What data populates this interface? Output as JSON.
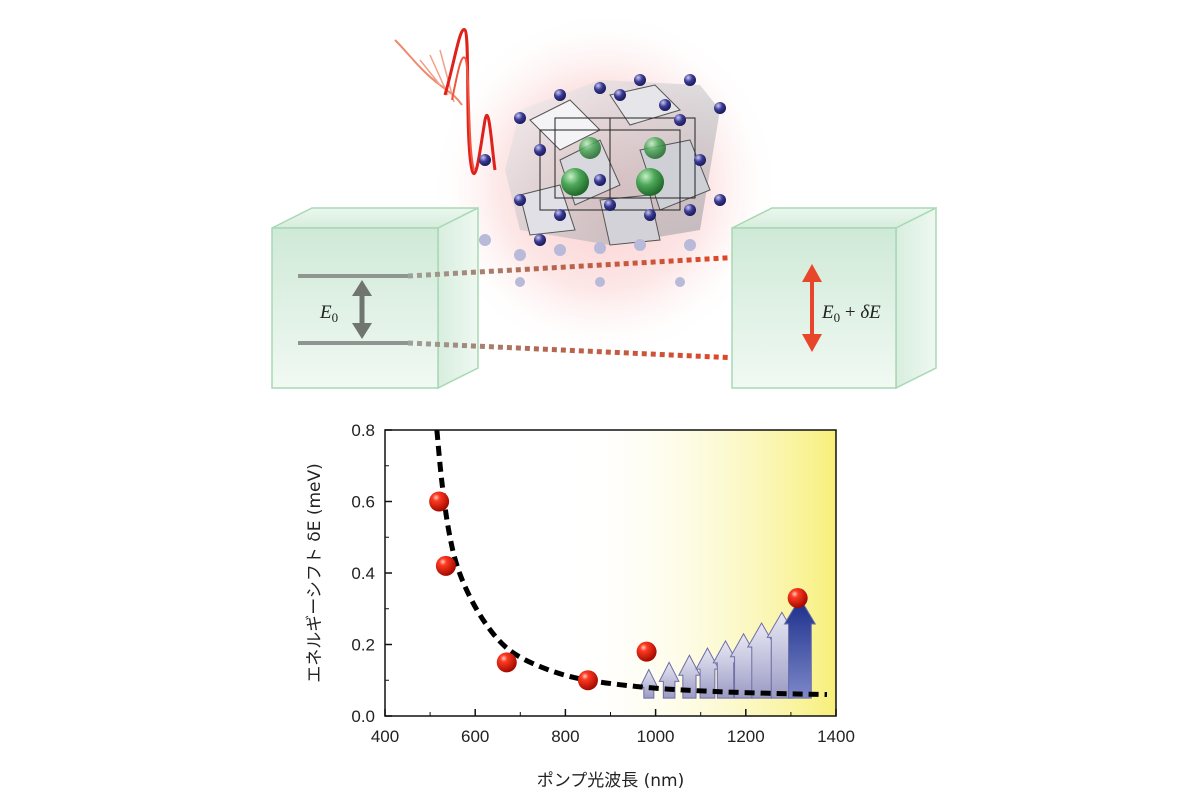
{
  "diagram": {
    "left_label_var": "E",
    "left_label_sub": "0",
    "right_label_var": "E",
    "right_label_sub": "0",
    "right_label_plus": " + ",
    "right_label_delta": "δE"
  },
  "chart_data": {
    "type": "scatter",
    "xlabel": "ポンプ光波長 (nm)",
    "ylabel": "エネルギーシフト δE (meV)",
    "xlim": [
      400,
      1400
    ],
    "ylim": [
      0,
      0.8
    ],
    "x_ticks": [
      "400",
      "600",
      "800",
      "1000",
      "1200",
      "1400"
    ],
    "y_ticks": [
      "0.0",
      "0.2",
      "0.4",
      "0.6",
      "0.8"
    ],
    "grid": false,
    "background_gradient": {
      "from_x": 800,
      "to_x": 1400,
      "from_color": "#ffffff",
      "to_color": "#f7ef7a"
    },
    "series": [
      {
        "kind": "points",
        "color": "#e02010",
        "x": [
          520,
          535,
          670,
          850,
          980,
          1315
        ],
        "y": [
          0.6,
          0.42,
          0.15,
          0.1,
          0.18,
          0.33
        ]
      },
      {
        "kind": "fit-curve",
        "style": "dashed",
        "color": "#000000",
        "x": [
          515,
          525,
          540,
          560,
          600,
          650,
          700,
          800,
          900,
          1000,
          1100,
          1200,
          1300,
          1380
        ],
        "y": [
          0.8,
          0.66,
          0.52,
          0.41,
          0.3,
          0.21,
          0.16,
          0.11,
          0.09,
          0.077,
          0.07,
          0.065,
          0.062,
          0.06
        ]
      }
    ],
    "arrows": {
      "x": [
        985,
        1030,
        1075,
        1115,
        1155,
        1195,
        1235,
        1280,
        1320
      ],
      "heights": [
        0.08,
        0.1,
        0.12,
        0.14,
        0.16,
        0.18,
        0.21,
        0.24,
        0.28
      ]
    }
  }
}
